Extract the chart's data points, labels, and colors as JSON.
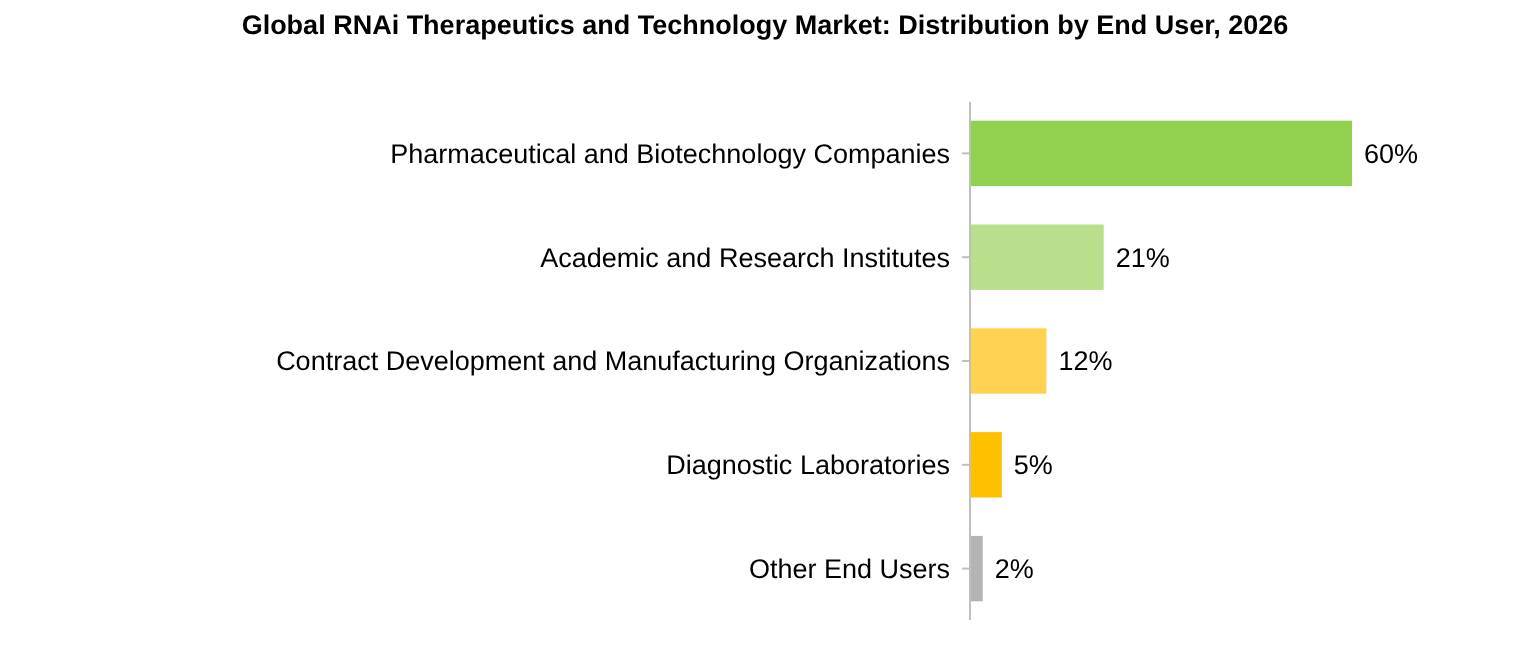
{
  "chart_data": {
    "type": "bar",
    "orientation": "horizontal",
    "title": "Global RNAi Therapeutics and Technology Market: Distribution by End User, 2026",
    "categories": [
      "Pharmaceutical and Biotechnology Companies",
      "Academic and Research Institutes",
      "Contract Development and Manufacturing Organizations",
      "Diagnostic Laboratories",
      "Other End Users"
    ],
    "values": [
      60,
      21,
      12,
      5,
      2
    ],
    "colors": [
      "#92d050",
      "#b8e08c",
      "#ffd34f",
      "#ffc000",
      "#b4b4b4"
    ],
    "value_labels": [
      "60%",
      "21%",
      "12%",
      "5%",
      "2%"
    ]
  }
}
